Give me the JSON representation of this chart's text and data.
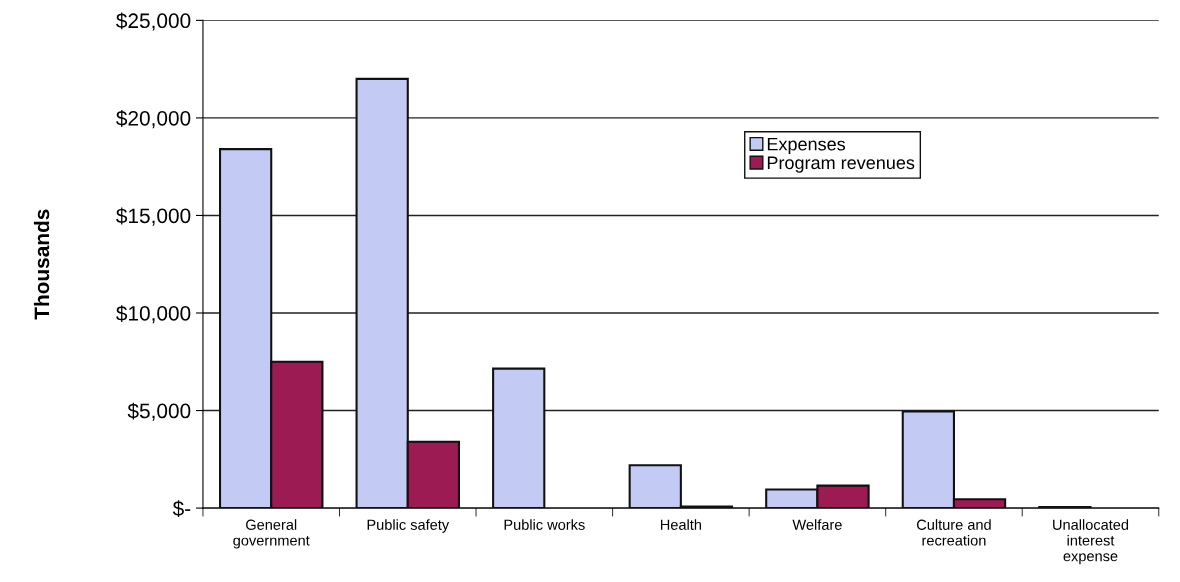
{
  "chart_data": {
    "type": "bar",
    "ylabel": "Thousands",
    "categories": [
      "General\ngovernment",
      "Public safety",
      "Public works",
      "Health",
      "Welfare",
      "Culture and\nrecreation",
      "Unallocated\ninterest\nexpense"
    ],
    "series": [
      {
        "name": "Expenses",
        "color": "#c3cbf5",
        "values": [
          18400,
          22000,
          7150,
          2200,
          950,
          4950,
          50
        ]
      },
      {
        "name": "Program revenues",
        "color": "#9b1b52",
        "values": [
          7500,
          3400,
          null,
          80,
          1150,
          450,
          null
        ]
      }
    ],
    "ylim": [
      0,
      25000
    ],
    "yticks": [
      {
        "value": 0,
        "label": "$-"
      },
      {
        "value": 5000,
        "label": "$5,000"
      },
      {
        "value": 10000,
        "label": "$10,000"
      },
      {
        "value": 15000,
        "label": "$15,000"
      },
      {
        "value": 20000,
        "label": "$20,000"
      },
      {
        "value": 25000,
        "label": "$25,000"
      }
    ],
    "grid": "y",
    "legend": "top right"
  }
}
